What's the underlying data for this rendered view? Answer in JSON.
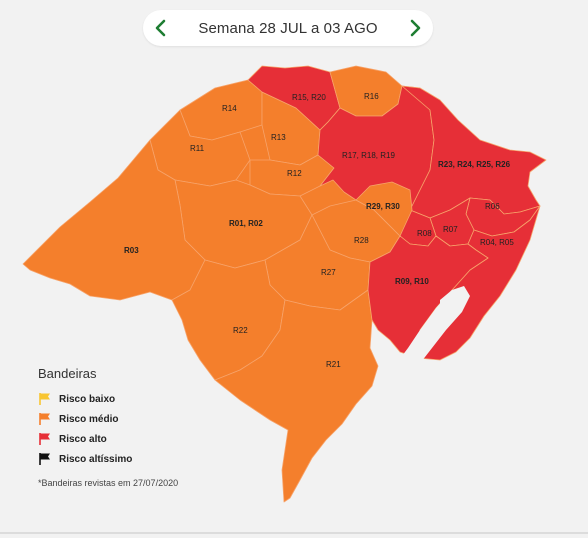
{
  "header": {
    "week_label": "Semana 28 JUL a 03 AGO"
  },
  "colors": {
    "risco_baixo": "#f8c531",
    "risco_medio": "#f47f2c",
    "risco_alto": "#e62f37",
    "risco_altissimo": "#111111",
    "nav_arrow": "#1e7d32",
    "border": "#f2f2f2"
  },
  "icons": {
    "prev": "chevron-left-icon",
    "next": "chevron-right-icon",
    "flag": "flag-icon"
  },
  "regions": [
    {
      "label": "R15, R20",
      "risk": "alto"
    },
    {
      "label": "R16",
      "risk": "medio"
    },
    {
      "label": "R14",
      "risk": "medio"
    },
    {
      "label": "R13",
      "risk": "medio"
    },
    {
      "label": "R11",
      "risk": "medio"
    },
    {
      "label": "R12",
      "risk": "medio"
    },
    {
      "label": "R17, R18, R19",
      "risk": "alto"
    },
    {
      "label": "R23, R24, R25, R26",
      "risk": "alto"
    },
    {
      "label": "R29, R30",
      "risk": "medio"
    },
    {
      "label": "R06",
      "risk": "alto"
    },
    {
      "label": "R01, R02",
      "risk": "medio"
    },
    {
      "label": "R03",
      "risk": "medio"
    },
    {
      "label": "R08",
      "risk": "alto"
    },
    {
      "label": "R07",
      "risk": "alto"
    },
    {
      "label": "R04, R05",
      "risk": "alto"
    },
    {
      "label": "R28",
      "risk": "medio"
    },
    {
      "label": "R27",
      "risk": "medio"
    },
    {
      "label": "R09, R10",
      "risk": "alto"
    },
    {
      "label": "R22",
      "risk": "medio"
    },
    {
      "label": "R21",
      "risk": "medio"
    }
  ],
  "legend": {
    "title": "Bandeiras",
    "items": [
      {
        "label": "Risco baixo",
        "color": "#f8c531"
      },
      {
        "label": "Risco médio",
        "color": "#f47f2c"
      },
      {
        "label": "Risco alto",
        "color": "#e62f37"
      },
      {
        "label": "Risco altíssimo",
        "color": "#111111"
      }
    ]
  },
  "footnote": "*Bandeiras revistas em 27/07/2020"
}
